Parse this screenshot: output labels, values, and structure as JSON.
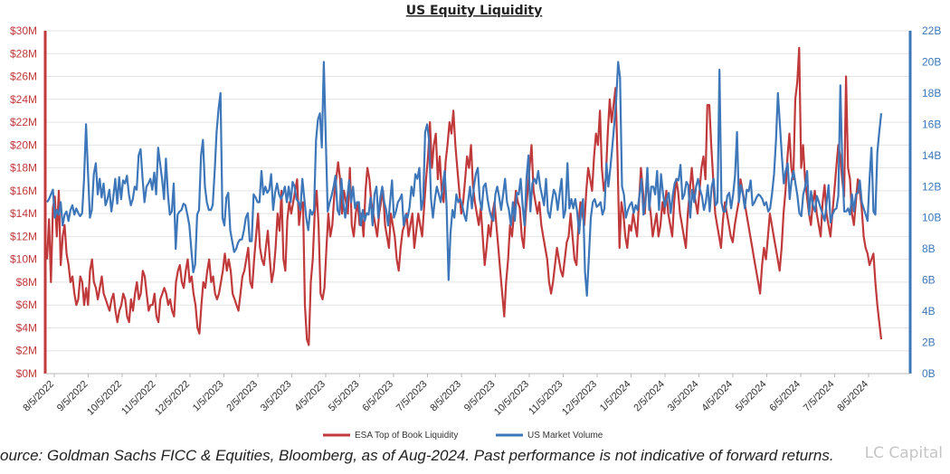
{
  "colors": {
    "liquidity": "#c0393b",
    "volume": "#3d77b9",
    "grid": "#e3e3e3"
  },
  "source_text": "ource: Goldman Sachs FICC & Equities, Bloomberg, as of Aug-2024.  Past performance is not indicative of forward returns.",
  "watermark_text": "LC Capital",
  "chart_data": {
    "type": "line",
    "title": "US Equity Liquidity",
    "grid": true,
    "legend_position": "bottom-center",
    "x_tick_labels": [
      "8/5/2022",
      "9/5/2022",
      "10/5/2022",
      "11/5/2022",
      "12/5/2022",
      "1/5/2023",
      "2/5/2023",
      "3/5/2023",
      "4/5/2023",
      "5/5/2023",
      "6/5/2023",
      "7/5/2023",
      "8/5/2023",
      "9/5/2023",
      "10/5/2023",
      "11/5/2023",
      "12/5/2023",
      "1/5/2024",
      "2/5/2024",
      "3/5/2024",
      "4/5/2024",
      "5/5/2024",
      "6/5/2024",
      "7/5/2024",
      "8/5/2024"
    ],
    "y_left": {
      "min": 0,
      "max": 30,
      "step": 2,
      "tick_labels": [
        "$0M",
        "$2M",
        "$4M",
        "$6M",
        "$8M",
        "$10M",
        "$12M",
        "$14M",
        "$16M",
        "$18M",
        "$20M",
        "$22M",
        "$24M",
        "$26M",
        "$28M",
        "$30M"
      ]
    },
    "y_right": {
      "min": 0,
      "max": 22,
      "step": 2,
      "tick_labels": [
        "0B",
        "2B",
        "4B",
        "6B",
        "8B",
        "10B",
        "12B",
        "14B",
        "16B",
        "18B",
        "20B",
        "22B"
      ]
    },
    "series": [
      {
        "name": "ESA Top of Book Liquidity",
        "axis": "left",
        "values": [
          10,
          13.5,
          8,
          14.5,
          15.5,
          12,
          16,
          9.5,
          12,
          13,
          10.5,
          9.5,
          8,
          8.5,
          7,
          6,
          6.5,
          8.5,
          8,
          6,
          7.5,
          6,
          9,
          10,
          8,
          7.5,
          6.5,
          7.5,
          8.5,
          7,
          6.5,
          6,
          5.5,
          6.5,
          7,
          5.5,
          4.5,
          5.5,
          6,
          7,
          6.5,
          5,
          4.5,
          6.5,
          5.5,
          7,
          8,
          6.5,
          7,
          9,
          8.5,
          7,
          5.5,
          6,
          6,
          7,
          5,
          4.5,
          6.5,
          7,
          7.5,
          7,
          6,
          6.5,
          5.5,
          5,
          8,
          9,
          9.5,
          8,
          7.5,
          9,
          10,
          8,
          8.5,
          7,
          6,
          4,
          3.5,
          6,
          8,
          7.5,
          9,
          10,
          8,
          8.5,
          7,
          6.5,
          7,
          8,
          9,
          10.5,
          9,
          10,
          9,
          7,
          6.5,
          6,
          5.5,
          7,
          8.5,
          9,
          10,
          11,
          8,
          7.5,
          10,
          12,
          14,
          11,
          10,
          9.5,
          11,
          12.5,
          10,
          8,
          9,
          11,
          14,
          12.5,
          16,
          10,
          9,
          13.5,
          15,
          14,
          15,
          16,
          17,
          13,
          14.5,
          15,
          6,
          3,
          2.5,
          8,
          10,
          14,
          16,
          13,
          7,
          6.5,
          7.5,
          11,
          14,
          12,
          13,
          15.5,
          17,
          18.5,
          17,
          14,
          16,
          15,
          14,
          18,
          13,
          12,
          14,
          15,
          13,
          14,
          12,
          16,
          18,
          17,
          15,
          14,
          13,
          12,
          14,
          15,
          16,
          13,
          12,
          11,
          14,
          13,
          12,
          10,
          9,
          11,
          12.5,
          13,
          14,
          12,
          13,
          14,
          11,
          12.5,
          14,
          13,
          12,
          14.5,
          17,
          19,
          22,
          18,
          20,
          21,
          17,
          19,
          16,
          15,
          18.5,
          20,
          22,
          21,
          23,
          20,
          18,
          16,
          14,
          15,
          17,
          19,
          18,
          20,
          16.5,
          15,
          14,
          13,
          14.5,
          12,
          9.5,
          11,
          13,
          12,
          14,
          15,
          13,
          11,
          9,
          7,
          5,
          8,
          10,
          13,
          12,
          14,
          16,
          15,
          14.5,
          12,
          11,
          14,
          16,
          18,
          20,
          16,
          15,
          14,
          15,
          13,
          12,
          11,
          10,
          8,
          7,
          8,
          9.5,
          11,
          10,
          9,
          8.5,
          10,
          11.5,
          12,
          14,
          12,
          10,
          9.5,
          13,
          15,
          14,
          13,
          16,
          18,
          17,
          16,
          19,
          21,
          20,
          23,
          18,
          16,
          17,
          21,
          24,
          22,
          23.5,
          25,
          19,
          11,
          15,
          14,
          12,
          11,
          13,
          12.5,
          14,
          13,
          12,
          15,
          18,
          16,
          14,
          17,
          15.5,
          14,
          12,
          13,
          14,
          12,
          13,
          15,
          14,
          16,
          14,
          13,
          12,
          15,
          17,
          16,
          14,
          13,
          12,
          11,
          14,
          16,
          18,
          16,
          15,
          14,
          16,
          18,
          19,
          17,
          23.5,
          23.5,
          20,
          17,
          14,
          13,
          12,
          11,
          13.5,
          15,
          14,
          13,
          12,
          11.5,
          13,
          14,
          15,
          17,
          16,
          15,
          14,
          13,
          12,
          11,
          10,
          9,
          8,
          7,
          9.5,
          11,
          10,
          12,
          14,
          13,
          12,
          11,
          10,
          9,
          11,
          14,
          16,
          19,
          21,
          18,
          17,
          24,
          25.5,
          28.5,
          18,
          20,
          17,
          15.5,
          14,
          13,
          15,
          16,
          14,
          13,
          12,
          15,
          16.5,
          14,
          13,
          12,
          14,
          16,
          18,
          20,
          19,
          17,
          15.5,
          26,
          18,
          17,
          14,
          13,
          15,
          17,
          16,
          14.5,
          12,
          11,
          10.5,
          9.5,
          10,
          10.5,
          8,
          6,
          4.5,
          3
        ]
      },
      {
        "name": "US Market Volume",
        "axis": "right",
        "values": [
          11,
          11.2,
          11.5,
          11.8,
          10,
          10.5,
          10.2,
          11,
          9.5,
          10.2,
          10.4,
          9.8,
          10.5,
          10.8,
          10.2,
          10.6,
          10.3,
          10.1,
          10.3,
          12.5,
          16,
          13,
          10,
          10.5,
          12.8,
          13.5,
          11.5,
          12.5,
          11.3,
          12.2,
          10.8,
          11.2,
          11.8,
          10.4,
          11.3,
          12.5,
          10.9,
          12.6,
          11.2,
          12.4,
          12.2,
          12.7,
          11.5,
          10.8,
          11.2,
          12,
          11.8,
          14,
          14.4,
          12.5,
          11,
          12,
          12.2,
          12.5,
          11.8,
          12.9,
          11.5,
          14.5,
          13.5,
          12.5,
          11.2,
          13.8,
          11.5,
          10.2,
          10.4,
          12.2,
          8,
          10.2,
          10.4,
          10.5,
          10.9,
          10.8,
          10.2,
          9.5,
          8,
          6.5,
          7,
          10.2,
          10.5,
          14,
          15,
          12,
          11,
          10.5,
          10.5,
          10.8,
          13,
          15.5,
          17,
          18,
          10,
          9.5,
          11.3,
          11.6,
          9.2,
          8.5,
          7.8,
          8,
          8.4,
          8.6,
          8.6,
          9.2,
          10,
          10.3,
          8.5,
          8.5,
          11.5,
          11.3,
          11,
          11,
          13,
          11.5,
          12,
          11.6,
          11.8,
          12.8,
          10.5,
          11.6,
          12.2,
          11.5,
          11.2,
          11.5,
          12,
          11,
          12,
          11,
          12.3,
          12,
          11.2,
          11,
          10.5,
          12.5,
          11.2,
          10,
          9.2,
          10.5,
          10.2,
          10.5,
          15,
          16.3,
          16.7,
          14.5,
          20,
          15,
          10.4,
          11,
          11.4,
          12,
          12.7,
          10.5,
          10.2,
          12.5,
          11,
          10,
          11.2,
          12.4,
          11,
          12,
          10.6,
          11,
          11,
          9.5,
          10.5,
          9.8,
          10.3,
          10.2,
          11.3,
          9.5,
          11.5,
          12,
          10,
          11.3,
          12,
          11,
          10.5,
          9.5,
          11,
          12.4,
          10,
          10.4,
          11,
          11.2,
          11.5,
          9.5,
          10.2,
          10,
          10.7,
          12,
          11.4,
          12.8,
          12.5,
          13.2,
          10.5,
          11.2,
          15.5,
          16,
          15,
          11.2,
          10,
          11.2,
          12,
          11.5,
          11,
          12,
          13,
          10.8,
          6,
          9,
          10.5,
          10,
          11.5,
          11,
          11.2,
          10.8,
          10.2,
          9.8,
          11,
          12,
          10.6,
          12,
          12.8,
          13.2,
          11.2,
          10.5,
          12,
          12.2,
          11.2,
          10.5,
          10,
          9.8,
          11.5,
          12,
          11.3,
          10.5,
          11.5,
          12.5,
          11,
          10.5,
          9.5,
          11,
          9.8,
          11.6,
          11.5,
          12.5,
          10.8,
          9.5,
          12.5,
          14,
          10.4,
          12.2,
          12.5,
          12.2,
          13,
          12,
          11.4,
          10.8,
          12.5,
          10.4,
          10,
          11,
          11.8,
          11.5,
          10.5,
          11.6,
          12.5,
          10,
          10.5,
          13.5,
          10.6,
          11.2,
          10.6,
          11.2,
          10.4,
          9,
          10.5,
          11.2,
          6.5,
          5,
          7.5,
          10,
          11,
          11.2,
          10.7,
          10.8,
          11,
          10.2,
          10.6,
          13.5,
          12,
          13.2,
          14.5,
          16,
          17.5,
          20,
          19,
          12,
          11.5,
          10,
          10.5,
          10.8,
          11,
          10.3,
          10.8,
          10.5,
          11.5,
          12.5,
          10.2,
          11,
          13.2,
          10.5,
          12,
          12,
          11.5,
          13,
          10.5,
          12.8,
          11.6,
          10.7,
          11.2,
          11.6,
          10.3,
          11.4,
          12.2,
          12.5,
          12.4,
          13.4,
          11.2,
          11.5,
          12.3,
          12.1,
          10,
          11.8,
          11,
          12,
          12.5,
          11.8,
          11.4,
          10.5,
          11,
          12.1,
          10.4,
          12,
          12.5,
          10.8,
          11,
          19.5,
          11,
          10.4,
          10.4,
          11.4,
          11.6,
          10.6,
          11.5,
          12.7,
          15.5,
          11,
          12.1,
          11.5,
          10.6,
          11.8,
          11.7,
          12.4,
          10.8,
          11,
          11.3,
          11.5,
          11.4,
          11.2,
          10.8,
          11,
          10.4,
          10.6,
          11.6,
          12.8,
          15,
          18,
          16,
          14,
          12.2,
          13,
          13.5,
          11.2,
          12.4,
          13,
          12.2,
          11.4,
          10.3,
          10.1,
          11.5,
          12,
          13,
          10.2,
          11.7,
          10.8,
          10.4,
          11.4,
          11,
          10.6,
          10.2,
          9.8,
          11,
          12.1,
          9.7,
          10.2,
          10.5,
          10.6,
          11.4,
          18.5,
          13.5,
          10.4,
          10.4,
          10.6,
          10.2,
          11.5,
          10.4,
          11.5,
          11.6,
          12.4,
          11,
          10.6,
          10.2,
          9.8,
          12.5,
          14.5,
          10.4,
          10.2,
          14.2,
          15.5,
          16.7
        ]
      }
    ]
  }
}
